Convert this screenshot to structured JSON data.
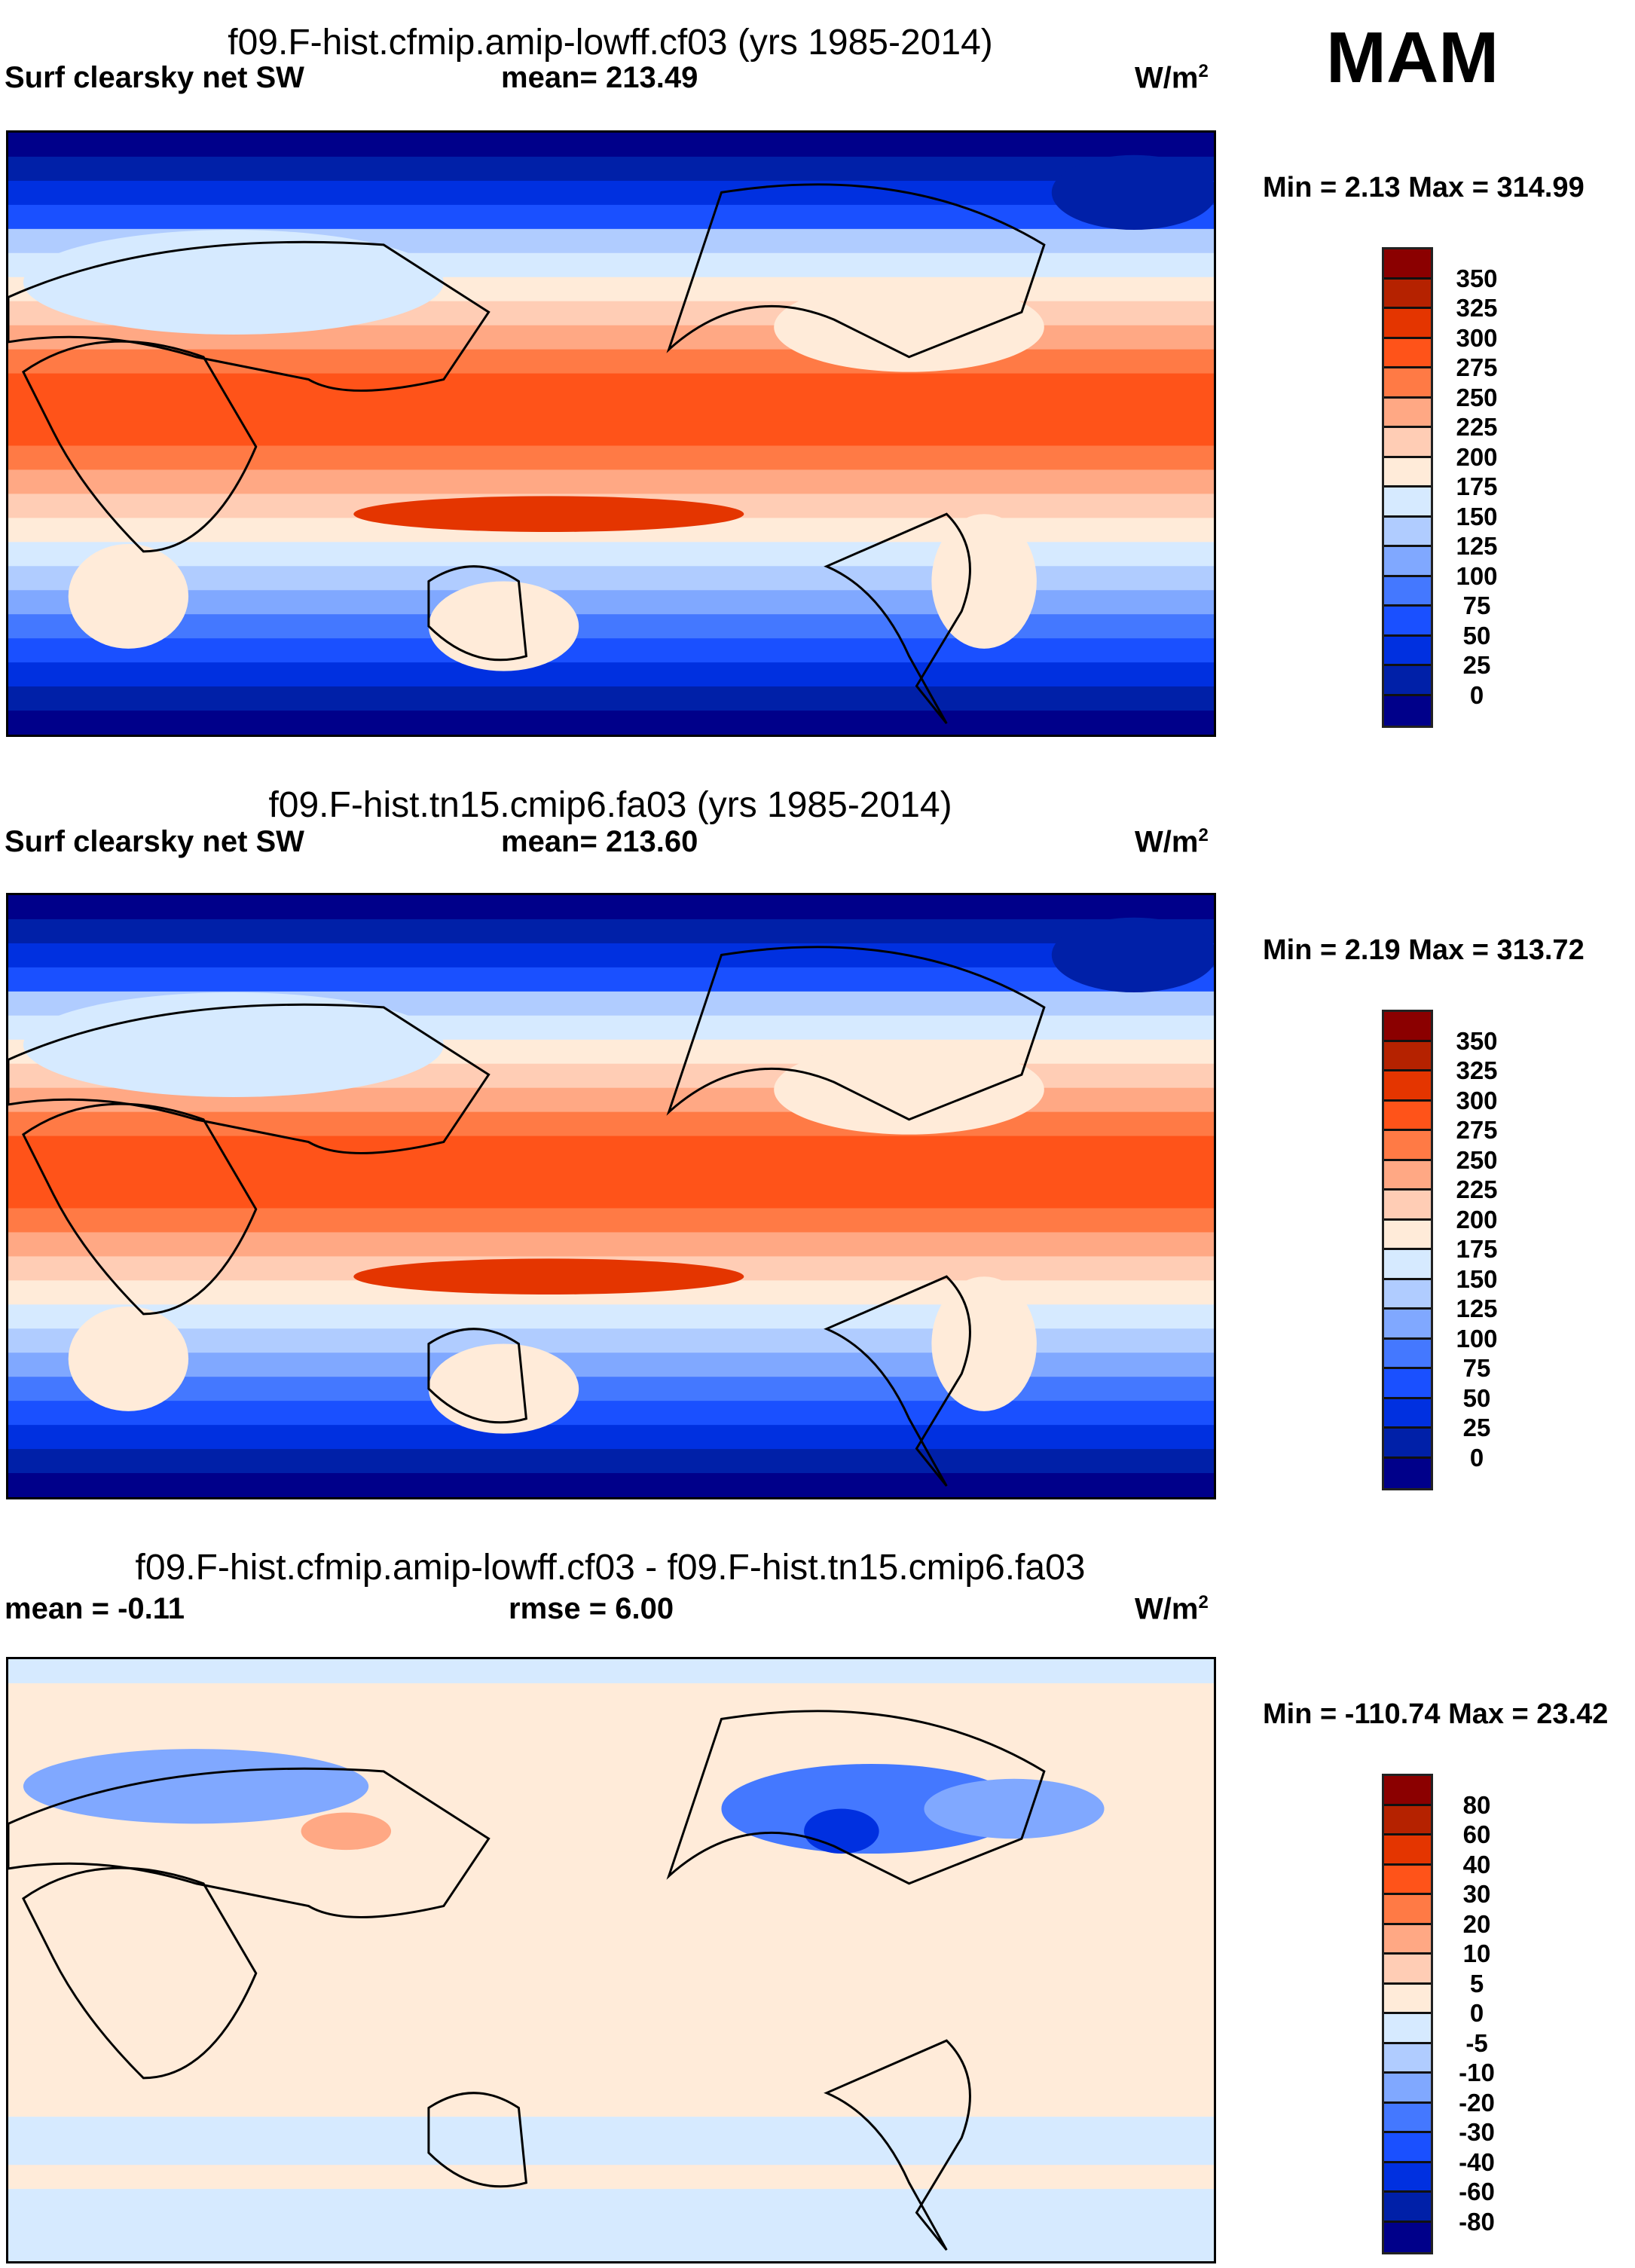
{
  "season": "MAM",
  "colors": {
    "levels16": [
      "#8b0000",
      "#b52200",
      "#e43500",
      "#ff5319",
      "#ff7a45",
      "#ffa884",
      "#ffcdb5",
      "#ffebd9",
      "#d6eaff",
      "#b0ccff",
      "#80a8ff",
      "#4478ff",
      "#1a50ff",
      "#0030e0",
      "#0020a8",
      "#00008a"
    ]
  },
  "chart_data": [
    {
      "type": "heatmap",
      "title": "f09.F-hist.cfmip.amip-lowff.cf03 (yrs 1985-2014)",
      "variable": "Surf clearsky net SW",
      "mean_label": "mean= 213.49",
      "units": "W/m",
      "units_exp": "2",
      "minmax": "Min =   2.13 Max = 314.99",
      "levels": [
        "350",
        "325",
        "300",
        "275",
        "250",
        "225",
        "200",
        "175",
        "150",
        "125",
        "100",
        "75",
        "50",
        "25",
        "0"
      ]
    },
    {
      "type": "heatmap",
      "title": "f09.F-hist.tn15.cmip6.fa03 (yrs 1985-2014)",
      "variable": "Surf clearsky net SW",
      "mean_label": "mean= 213.60",
      "units": "W/m",
      "units_exp": "2",
      "minmax": "Min =   2.19 Max = 313.72",
      "levels": [
        "350",
        "325",
        "300",
        "275",
        "250",
        "225",
        "200",
        "175",
        "150",
        "125",
        "100",
        "75",
        "50",
        "25",
        "0"
      ]
    },
    {
      "type": "heatmap",
      "title": "f09.F-hist.cfmip.amip-lowff.cf03 - f09.F-hist.tn15.cmip6.fa03",
      "variable": "mean =  -0.11",
      "mean_label": "rmse =    6.00",
      "units": "W/m",
      "units_exp": "2",
      "minmax": "Min = -110.74 Max =  23.42",
      "levels": [
        "80",
        "60",
        "40",
        "30",
        "20",
        "10",
        "5",
        "0",
        "-5",
        "-10",
        "-20",
        "-30",
        "-40",
        "-60",
        "-80"
      ]
    }
  ]
}
